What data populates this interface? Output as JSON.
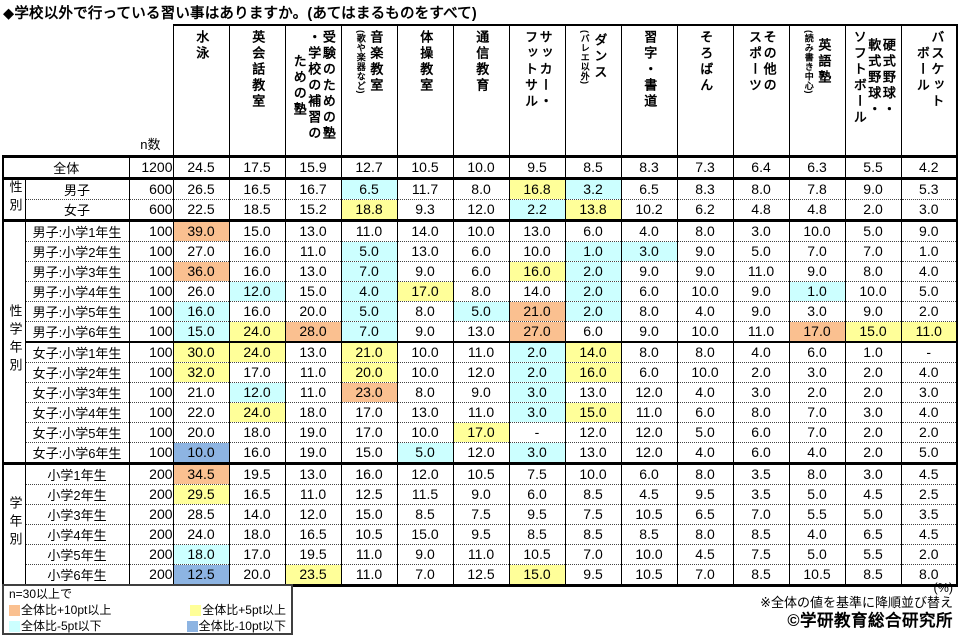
{
  "title": "◆学校以外で行っている習い事はありますか。(あてはまるものをすべて)",
  "colors": {
    "plus10": "#FAC090",
    "plus5": "#FFFF99",
    "minus5": "#CCFFFF",
    "minus10": "#8DB4E2"
  },
  "chart_data": {
    "type": "table",
    "unit": "%",
    "n_header": "n数",
    "columns": [
      {
        "main": [
          "水泳"
        ]
      },
      {
        "main": [
          "英会話教室"
        ]
      },
      {
        "main": [
          "受験のための塾",
          "・学校の補習の",
          "ための塾"
        ]
      },
      {
        "main": [
          "音楽教室"
        ],
        "sub": "(歌や楽器など)"
      },
      {
        "main": [
          "体操教室"
        ]
      },
      {
        "main": [
          "通信教育"
        ]
      },
      {
        "main": [
          "サッカー・",
          "フットサル"
        ]
      },
      {
        "main": [
          "ダンス"
        ],
        "sub": "(バレエ以外)"
      },
      {
        "main": [
          "習字・書道"
        ]
      },
      {
        "main": [
          "そろばん"
        ]
      },
      {
        "main": [
          "その他の",
          "スポーツ"
        ]
      },
      {
        "main": [
          "英語塾"
        ],
        "sub": "(読み書き中心)"
      },
      {
        "main": [
          "硬式野球・",
          "軟式野球・",
          "ソフトボール"
        ]
      },
      {
        "main": [
          "バスケット",
          "ボール"
        ]
      }
    ],
    "groups": [
      {
        "label": "",
        "rows": [
          {
            "label": "全体",
            "n": "1200",
            "values": [
              "24.5",
              "17.5",
              "15.9",
              "12.7",
              "10.5",
              "10.0",
              "9.5",
              "8.5",
              "8.3",
              "7.3",
              "6.4",
              "6.3",
              "5.5",
              "4.2"
            ],
            "marks": {}
          }
        ]
      },
      {
        "label": "性別",
        "rows": [
          {
            "label": "男子",
            "n": "600",
            "values": [
              "26.5",
              "16.5",
              "16.7",
              "6.5",
              "11.7",
              "8.0",
              "16.8",
              "3.2",
              "6.5",
              "8.3",
              "8.0",
              "7.8",
              "9.0",
              "5.3"
            ],
            "marks": {
              "3": "minus5",
              "6": "plus5",
              "7": "minus5"
            }
          },
          {
            "label": "女子",
            "n": "600",
            "values": [
              "22.5",
              "18.5",
              "15.2",
              "18.8",
              "9.3",
              "12.0",
              "2.2",
              "13.8",
              "10.2",
              "6.2",
              "4.8",
              "4.8",
              "2.0",
              "3.0"
            ],
            "marks": {
              "3": "plus5",
              "6": "minus5",
              "7": "plus5"
            }
          }
        ]
      },
      {
        "label": "性学年別",
        "rows": [
          {
            "label": "男子:小学1年生",
            "n": "100",
            "values": [
              "39.0",
              "15.0",
              "13.0",
              "11.0",
              "14.0",
              "10.0",
              "13.0",
              "6.0",
              "4.0",
              "8.0",
              "3.0",
              "10.0",
              "5.0",
              "9.0"
            ],
            "marks": {
              "0": "plus10"
            }
          },
          {
            "label": "男子:小学2年生",
            "n": "100",
            "values": [
              "27.0",
              "16.0",
              "11.0",
              "5.0",
              "13.0",
              "6.0",
              "10.0",
              "1.0",
              "3.0",
              "9.0",
              "5.0",
              "7.0",
              "7.0",
              "1.0"
            ],
            "marks": {
              "3": "minus5",
              "7": "minus5",
              "8": "minus5"
            }
          },
          {
            "label": "男子:小学3年生",
            "n": "100",
            "values": [
              "36.0",
              "16.0",
              "13.0",
              "7.0",
              "9.0",
              "6.0",
              "16.0",
              "2.0",
              "9.0",
              "9.0",
              "11.0",
              "9.0",
              "8.0",
              "4.0"
            ],
            "marks": {
              "0": "plus10",
              "3": "minus5",
              "6": "plus5",
              "7": "minus5"
            }
          },
          {
            "label": "男子:小学4年生",
            "n": "100",
            "values": [
              "26.0",
              "12.0",
              "15.0",
              "4.0",
              "17.0",
              "8.0",
              "14.0",
              "2.0",
              "6.0",
              "10.0",
              "9.0",
              "1.0",
              "10.0",
              "5.0"
            ],
            "marks": {
              "1": "minus5",
              "3": "minus5",
              "4": "plus5",
              "7": "minus5",
              "11": "minus5"
            }
          },
          {
            "label": "男子:小学5年生",
            "n": "100",
            "values": [
              "16.0",
              "16.0",
              "20.0",
              "5.0",
              "8.0",
              "5.0",
              "21.0",
              "2.0",
              "8.0",
              "4.0",
              "9.0",
              "3.0",
              "9.0",
              "2.0"
            ],
            "marks": {
              "0": "minus5",
              "3": "minus5",
              "5": "minus5",
              "6": "plus10",
              "7": "minus5"
            }
          },
          {
            "label": "男子:小学6年生",
            "n": "100",
            "values": [
              "15.0",
              "24.0",
              "28.0",
              "7.0",
              "9.0",
              "13.0",
              "27.0",
              "6.0",
              "9.0",
              "10.0",
              "11.0",
              "17.0",
              "15.0",
              "11.0"
            ],
            "marks": {
              "0": "minus5",
              "1": "plus5",
              "2": "plus10",
              "3": "minus5",
              "6": "plus10",
              "11": "plus10",
              "12": "plus5",
              "13": "plus5"
            }
          },
          {
            "label": "女子:小学1年生",
            "n": "100",
            "divider": true,
            "values": [
              "30.0",
              "24.0",
              "13.0",
              "21.0",
              "10.0",
              "11.0",
              "2.0",
              "14.0",
              "8.0",
              "8.0",
              "4.0",
              "6.0",
              "1.0",
              "-"
            ],
            "marks": {
              "0": "plus5",
              "1": "plus5",
              "3": "plus5",
              "6": "minus5",
              "7": "plus5"
            }
          },
          {
            "label": "女子:小学2年生",
            "n": "100",
            "values": [
              "32.0",
              "17.0",
              "11.0",
              "20.0",
              "10.0",
              "12.0",
              "2.0",
              "16.0",
              "6.0",
              "10.0",
              "2.0",
              "3.0",
              "2.0",
              "4.0"
            ],
            "marks": {
              "0": "plus5",
              "3": "plus5",
              "6": "minus5",
              "7": "plus5"
            }
          },
          {
            "label": "女子:小学3年生",
            "n": "100",
            "values": [
              "21.0",
              "12.0",
              "11.0",
              "23.0",
              "8.0",
              "9.0",
              "3.0",
              "13.0",
              "12.0",
              "4.0",
              "3.0",
              "2.0",
              "2.0",
              "3.0"
            ],
            "marks": {
              "1": "minus5",
              "3": "plus10",
              "6": "minus5"
            }
          },
          {
            "label": "女子:小学4年生",
            "n": "100",
            "values": [
              "22.0",
              "24.0",
              "18.0",
              "17.0",
              "13.0",
              "11.0",
              "3.0",
              "15.0",
              "11.0",
              "6.0",
              "8.0",
              "7.0",
              "3.0",
              "4.0"
            ],
            "marks": {
              "1": "plus5",
              "6": "minus5",
              "7": "plus5"
            }
          },
          {
            "label": "女子:小学5年生",
            "n": "100",
            "values": [
              "20.0",
              "18.0",
              "19.0",
              "17.0",
              "10.0",
              "17.0",
              "-",
              "12.0",
              "12.0",
              "5.0",
              "6.0",
              "7.0",
              "2.0",
              "2.0"
            ],
            "marks": {
              "5": "plus5"
            }
          },
          {
            "label": "女子:小学6年生",
            "n": "100",
            "values": [
              "10.0",
              "16.0",
              "19.0",
              "15.0",
              "5.0",
              "12.0",
              "3.0",
              "13.0",
              "12.0",
              "4.0",
              "6.0",
              "4.0",
              "2.0",
              "5.0"
            ],
            "marks": {
              "0": "minus10",
              "4": "minus5",
              "6": "minus5"
            }
          }
        ]
      },
      {
        "label": "学年別",
        "rows": [
          {
            "label": "小学1年生",
            "n": "200",
            "values": [
              "34.5",
              "19.5",
              "13.0",
              "16.0",
              "12.0",
              "10.5",
              "7.5",
              "10.0",
              "6.0",
              "8.0",
              "3.5",
              "8.0",
              "3.0",
              "4.5"
            ],
            "marks": {
              "0": "plus10"
            }
          },
          {
            "label": "小学2年生",
            "n": "200",
            "values": [
              "29.5",
              "16.5",
              "11.0",
              "12.5",
              "11.5",
              "9.0",
              "6.0",
              "8.5",
              "4.5",
              "9.5",
              "3.5",
              "5.0",
              "4.5",
              "2.5"
            ],
            "marks": {
              "0": "plus5"
            }
          },
          {
            "label": "小学3年生",
            "n": "200",
            "values": [
              "28.5",
              "14.0",
              "12.0",
              "15.0",
              "8.5",
              "7.5",
              "9.5",
              "7.5",
              "10.5",
              "6.5",
              "7.0",
              "5.5",
              "5.0",
              "3.5"
            ],
            "marks": {}
          },
          {
            "label": "小学4年生",
            "n": "200",
            "values": [
              "24.0",
              "18.0",
              "16.5",
              "10.5",
              "15.0",
              "9.5",
              "8.5",
              "8.5",
              "8.5",
              "8.0",
              "8.5",
              "4.0",
              "6.5",
              "4.5"
            ],
            "marks": {}
          },
          {
            "label": "小学5年生",
            "n": "200",
            "values": [
              "18.0",
              "17.0",
              "19.5",
              "11.0",
              "9.0",
              "11.0",
              "10.5",
              "7.0",
              "10.0",
              "4.5",
              "7.5",
              "5.0",
              "5.5",
              "2.0"
            ],
            "marks": {
              "0": "minus5"
            }
          },
          {
            "label": "小学6年生",
            "n": "200",
            "values": [
              "12.5",
              "20.0",
              "23.5",
              "11.0",
              "7.0",
              "12.5",
              "15.0",
              "9.5",
              "10.5",
              "7.0",
              "8.5",
              "10.5",
              "8.5",
              "8.0"
            ],
            "marks": {
              "0": "minus10",
              "2": "plus5",
              "6": "plus5"
            }
          }
        ]
      }
    ]
  },
  "legend": {
    "note": "n=30以上で",
    "items": [
      {
        "mark": "plus10",
        "label": "全体比+10pt以上"
      },
      {
        "mark": "plus5",
        "label": "全体比+5pt以上"
      },
      {
        "mark": "minus5",
        "label": "全体比-5pt以下"
      },
      {
        "mark": "minus10",
        "label": "全体比-10pt以下"
      }
    ]
  },
  "footer": {
    "percent": "(%)",
    "sort_note": "※全体の値を基準に降順並び替え",
    "credit": "©学研教育総合研究所"
  }
}
